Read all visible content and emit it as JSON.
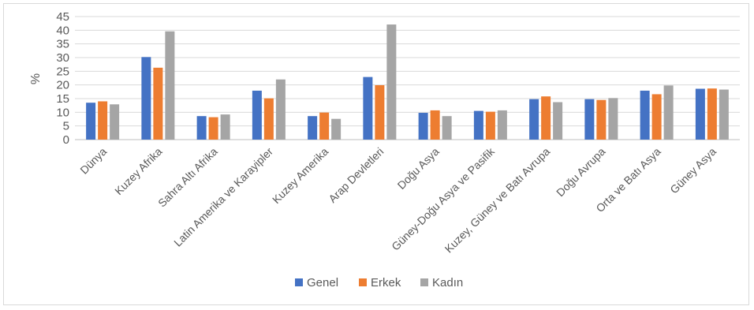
{
  "chart_data": {
    "type": "bar",
    "ylabel": "%",
    "xlabel": "",
    "ylim": [
      0,
      45
    ],
    "yticks": [
      0,
      5,
      10,
      15,
      20,
      25,
      30,
      35,
      40,
      45
    ],
    "grid": true,
    "legend_position": "bottom",
    "categories": [
      "Dünya",
      "Kuzey Afrika",
      "Sahra Altı Afrika",
      "Latin Amerika ve Karayipler",
      "Kuzey Amerika",
      "Arap Devletleri",
      "Doğu Asya",
      "Güney-Doğu Asya ve Pasifik",
      "Kuzey, Güney ve Batı Avrupa",
      "Doğu Avrupa",
      "Orta ve Batı Asya",
      "Güney Asya"
    ],
    "series": [
      {
        "name": "Genel",
        "color": "#4472c4",
        "values": [
          13.5,
          30.2,
          8.6,
          17.9,
          8.6,
          22.9,
          9.8,
          10.5,
          14.8,
          14.8,
          17.9,
          18.6
        ]
      },
      {
        "name": "Erkek",
        "color": "#ed7d31",
        "values": [
          14.0,
          26.3,
          8.2,
          15.1,
          9.9,
          19.9,
          10.7,
          10.2,
          15.8,
          14.5,
          16.6,
          18.7
        ]
      },
      {
        "name": "Kadın",
        "color": "#a5a5a5",
        "values": [
          12.9,
          39.6,
          9.2,
          22.0,
          7.6,
          42.1,
          8.6,
          10.7,
          13.7,
          15.2,
          19.8,
          18.3
        ]
      }
    ]
  }
}
